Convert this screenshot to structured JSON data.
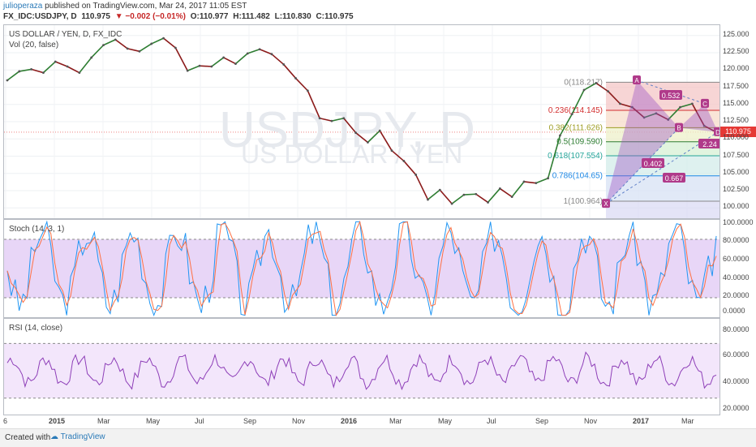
{
  "header": {
    "user": "julioperaza",
    "published": "published on TradingView.com, Mar 24, 2017 11:05 EST",
    "symbol": "FX_IDC:USDJPY, D",
    "last": "110.975",
    "change": "▼ −0.002 (−0.01%)",
    "open": "O:110.977",
    "high": "H:111.482",
    "low": "L:110.830",
    "close": "C:110.975"
  },
  "main": {
    "title": "US DOLLAR / YEN, D, FX_IDC",
    "vol": "Vol (20, false)",
    "watermark": "USDJPY, D",
    "watermark2": "US DOLLAR / YEN",
    "current_price": "110.975"
  },
  "stoch": {
    "label": "Stoch (14, 3, 1)",
    "ticks": [
      "100.0000",
      "80.0000",
      "60.0000",
      "40.0000",
      "20.0000",
      "0.0000"
    ]
  },
  "rsi": {
    "label": "RSI (14, close)",
    "ticks": [
      "80.0000",
      "60.0000",
      "40.0000",
      "20.0000"
    ]
  },
  "footer": {
    "created": "Created with",
    "brand": "TradingView"
  },
  "colors": {
    "up": "#2e7d32",
    "down": "#8b1a1a",
    "accent": "#b03a8a",
    "stoch_band": "#e8d6f7",
    "rsi_band": "#f3e6fb"
  },
  "chart_data": {
    "type": "line",
    "price_axis": {
      "ticks": [
        "125.000",
        "122.500",
        "120.000",
        "117.500",
        "115.000",
        "112.500",
        "110.000",
        "107.500",
        "105.000",
        "102.500",
        "100.000"
      ],
      "ylim": [
        98.5,
        126.5
      ]
    },
    "x_ticks": [
      "6",
      "2015",
      "Mar",
      "May",
      "Jul",
      "Sep",
      "Nov",
      "2016",
      "Mar",
      "May",
      "Jul",
      "Sep",
      "Nov",
      "2017",
      "Mar"
    ],
    "price_series": {
      "name": "USDJPY",
      "values": [
        118.5,
        119.8,
        120.1,
        119.6,
        121.2,
        120.5,
        119.6,
        121.8,
        123.6,
        124.4,
        123.1,
        122.7,
        123.8,
        124.6,
        123.2,
        119.9,
        120.6,
        120.5,
        121.8,
        120.9,
        122.4,
        123.0,
        122.3,
        120.8,
        118.8,
        117.0,
        113.0,
        112.6,
        113.0,
        110.9,
        109.5,
        111.2,
        108.3,
        106.8,
        104.8,
        101.2,
        102.6,
        100.6,
        101.9,
        102.0,
        100.8,
        102.8,
        101.6,
        103.8,
        103.6,
        104.3,
        110.5,
        113.6,
        117.1,
        118.1,
        116.9,
        115.1,
        114.6,
        113.1,
        113.7,
        112.8,
        114.6,
        115.1,
        111.9,
        110.98
      ]
    },
    "fib_levels": [
      {
        "label": "0(118.217)",
        "value": 118.217,
        "color": "#888888"
      },
      {
        "label": "0.236(114.145)",
        "value": 114.145,
        "color": "#d32f2f"
      },
      {
        "label": "0.382(111.626)",
        "value": 111.626,
        "color": "#9e9d24"
      },
      {
        "label": "0.5(109.590)",
        "value": 109.59,
        "color": "#2e7d32"
      },
      {
        "label": "0.618(107.554)",
        "value": 107.554,
        "color": "#26a69a"
      },
      {
        "label": "0.786(104.65)",
        "value": 104.65,
        "color": "#1e88e5"
      },
      {
        "label": "1(100.964)",
        "value": 100.964,
        "color": "#888888"
      }
    ],
    "harmonic": {
      "points": [
        {
          "name": "X",
          "value": 100.6
        },
        {
          "name": "A",
          "value": 118.5
        },
        {
          "name": "B",
          "value": 111.6
        },
        {
          "name": "C",
          "value": 115.1
        },
        {
          "name": "D",
          "value": 111.0
        }
      ],
      "ratios": [
        "0.532",
        "2.24",
        "0.402",
        "0.667"
      ]
    },
    "stoch_series": {
      "name": "Stoch",
      "range": [
        0,
        100
      ],
      "bands": [
        20,
        80
      ]
    },
    "rsi_series": {
      "name": "RSI",
      "range": [
        18,
        88
      ],
      "bands": [
        30,
        70
      ]
    }
  }
}
